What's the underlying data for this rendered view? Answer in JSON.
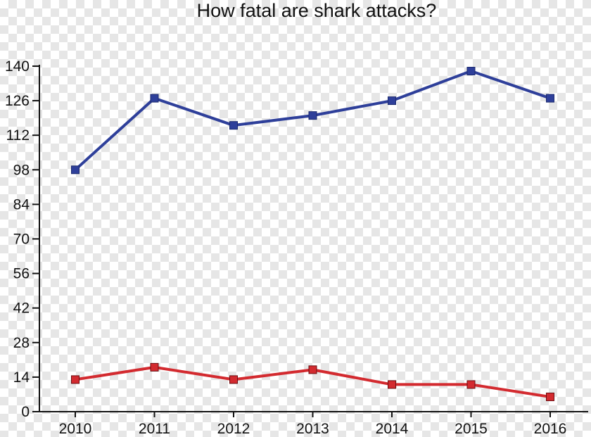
{
  "chart_data": {
    "type": "line",
    "title": "How fatal are shark attacks?",
    "xlabel": "",
    "ylabel": "",
    "categories": [
      "2010",
      "2011",
      "2012",
      "2013",
      "2014",
      "2015",
      "2016"
    ],
    "yticks": [
      "0",
      "14",
      "28",
      "42",
      "56",
      "70",
      "84",
      "98",
      "112",
      "126",
      "140"
    ],
    "ylim": [
      0,
      140
    ],
    "grid": false,
    "legend": "none",
    "series": [
      {
        "color": "#2e3f9a",
        "values": [
          98,
          127,
          116,
          120,
          126,
          138,
          127
        ]
      },
      {
        "color": "#d32a2f",
        "values": [
          13,
          18,
          13,
          17,
          11,
          11,
          6
        ]
      }
    ]
  }
}
